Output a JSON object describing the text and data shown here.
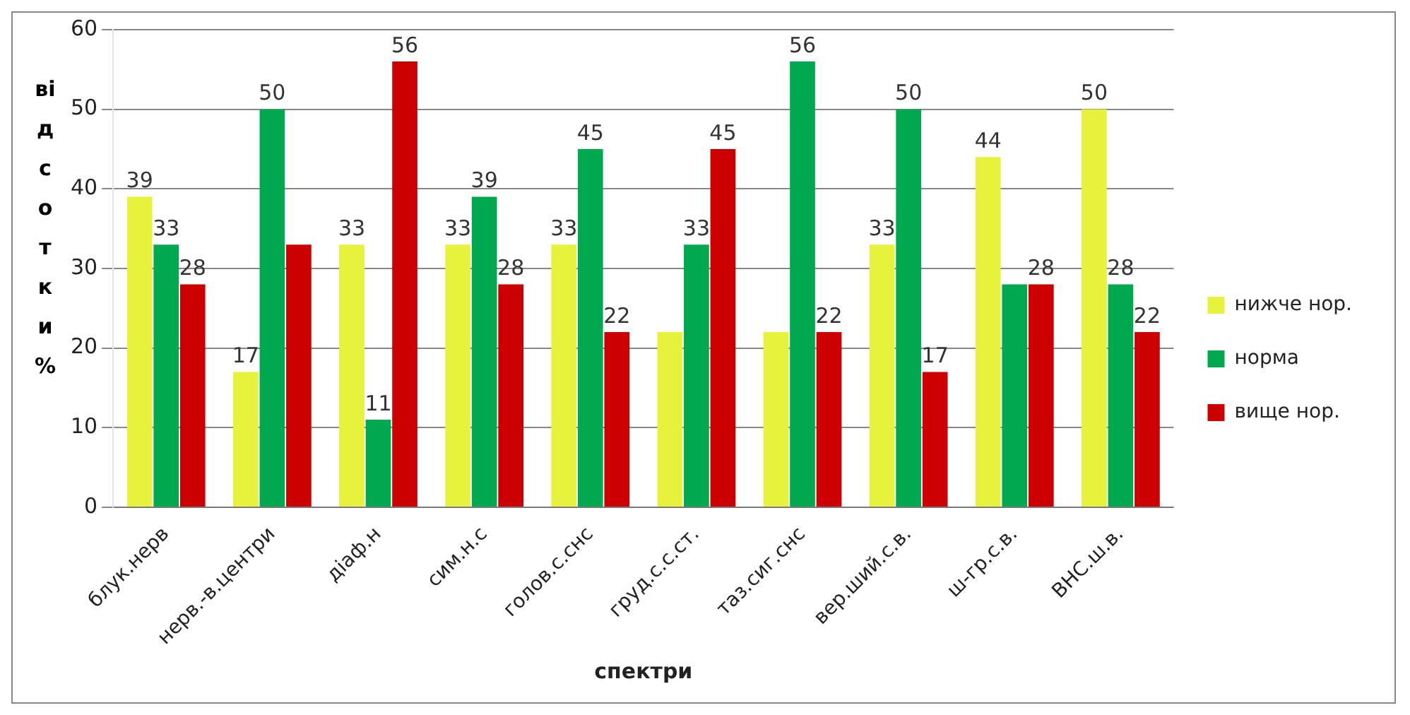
{
  "chart_data": {
    "type": "bar",
    "xlabel": "спектри",
    "ylabel": "відсотки %",
    "categories": [
      "блук.нерв",
      "нерв.-в.центри",
      "діаф.н",
      "сим.н.с",
      "голов.с.снс",
      "груд.с.с.ст.",
      "таз.сиг.снс",
      "вер.ший.с.в.",
      "ш-гр.с.в.",
      "ВНС.ш.в."
    ],
    "series": [
      {
        "name": "нижче нор.",
        "color": "#e6f23c",
        "values": [
          39,
          17,
          33,
          33,
          33,
          22,
          22,
          33,
          44,
          50
        ],
        "value_labels": [
          "39",
          "17",
          "33",
          "33",
          "33",
          null,
          null,
          "33",
          "44",
          "50"
        ]
      },
      {
        "name": "норма",
        "color": "#00a84f",
        "values": [
          33,
          50,
          11,
          39,
          45,
          33,
          56,
          50,
          28,
          28
        ],
        "value_labels": [
          "33",
          "50",
          "11",
          "39",
          "45",
          "33",
          "56",
          "50",
          null,
          "28"
        ]
      },
      {
        "name": "вище нор.",
        "color": "#cc0000",
        "values": [
          28,
          33,
          56,
          28,
          22,
          45,
          22,
          17,
          28,
          22
        ],
        "value_labels": [
          "28",
          null,
          "56",
          "28",
          "22",
          "45",
          "22",
          "17",
          "28",
          "22"
        ]
      }
    ],
    "ylim": [
      0,
      60
    ],
    "yticks": [
      0,
      10,
      20,
      30,
      40,
      50,
      60
    ],
    "grid": "y",
    "legend": "right"
  }
}
